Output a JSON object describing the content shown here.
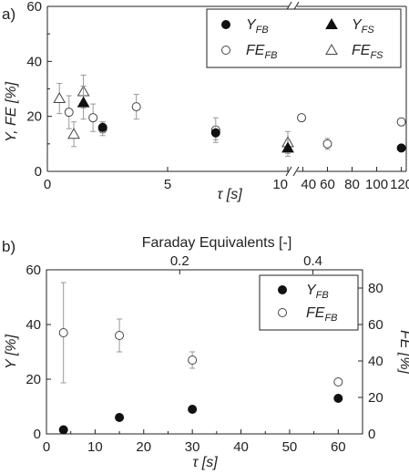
{
  "chart_data": [
    {
      "panel_label": "a)",
      "type": "scatter",
      "ylabel": "Y, FE [%]",
      "xlabel": "τ [s]",
      "ylim": [
        0,
        60
      ],
      "y_ticks": [
        0,
        20,
        40,
        60
      ],
      "x_segments": [
        {
          "xlim": [
            0,
            10
          ],
          "ticks": [
            0,
            5,
            10
          ]
        },
        {
          "xlim": [
            36,
            124
          ],
          "ticks": [
            40,
            60,
            80,
            100,
            120
          ]
        }
      ],
      "axis_break": true,
      "legend": {
        "placement": "top-right",
        "entries": [
          {
            "label": "Y",
            "sub": "FB",
            "marker": "filled-circle"
          },
          {
            "label": "Y",
            "sub": "FS",
            "marker": "filled-triangle"
          },
          {
            "label": "FE",
            "sub": "FB",
            "marker": "open-circle"
          },
          {
            "label": "FE",
            "sub": "FS",
            "marker": "open-triangle"
          }
        ]
      },
      "series": [
        {
          "key": "Y_FB",
          "marker": "filled-circle",
          "points": [
            {
              "x": 2.3,
              "y": 16,
              "err": 2
            },
            {
              "x": 7,
              "y": 14,
              "err": 2.5
            },
            {
              "x": 120,
              "y": 8.5,
              "err": 0
            }
          ]
        },
        {
          "key": "Y_FS",
          "marker": "filled-triangle",
          "points": [
            {
              "x": 1.5,
              "y": 25,
              "err": 6
            },
            {
              "x": 10,
              "y": 8.5,
              "err": 3
            }
          ]
        },
        {
          "key": "FE_FB",
          "marker": "open-circle",
          "points": [
            {
              "x": 0.9,
              "y": 21.5,
              "err": 6
            },
            {
              "x": 1.9,
              "y": 19.5,
              "err": 5
            },
            {
              "x": 2.3,
              "y": 15.5,
              "err": 2.5
            },
            {
              "x": 3.7,
              "y": 23.5,
              "err": 4.5
            },
            {
              "x": 7,
              "y": 15,
              "err": 4.5
            },
            {
              "x": 39,
              "y": 19.5,
              "err": 1
            },
            {
              "x": 60,
              "y": 10,
              "err": 2
            },
            {
              "x": 120,
              "y": 18,
              "err": 1
            }
          ]
        },
        {
          "key": "FE_FS",
          "marker": "open-triangle",
          "points": [
            {
              "x": 0.5,
              "y": 26.5,
              "err": 5.5
            },
            {
              "x": 1.1,
              "y": 13.5,
              "err": 4.5
            },
            {
              "x": 1.5,
              "y": 29,
              "err": 6
            },
            {
              "x": 10,
              "y": 10.5,
              "err": 4
            }
          ]
        }
      ]
    },
    {
      "panel_label": "b)",
      "type": "scatter",
      "top_xlabel": "Faraday Equivalents [-]",
      "top_ticks": [
        "0.2",
        "0.4"
      ],
      "top_tick_taus": [
        27.4,
        54.8
      ],
      "ylabel": "Y [%]",
      "y2label": "FE [%]",
      "xlabel": "τ [s]",
      "xlim": [
        0,
        65
      ],
      "x_ticks": [
        0,
        10,
        20,
        30,
        40,
        50,
        60
      ],
      "ylim": [
        0,
        60
      ],
      "y_ticks": [
        0,
        20,
        40,
        60
      ],
      "y2lim": [
        0,
        90
      ],
      "y2_ticks": [
        0,
        20,
        40,
        60,
        80
      ],
      "legend": {
        "placement": "top-right",
        "entries": [
          {
            "label": "Y",
            "sub": "FB",
            "marker": "filled-circle"
          },
          {
            "label": "FE",
            "sub": "FB",
            "marker": "open-circle"
          }
        ]
      },
      "series": [
        {
          "key": "Y_FB",
          "axis": "left",
          "marker": "filled-circle",
          "points": [
            {
              "x": 3.5,
              "y": 1.5
            },
            {
              "x": 15,
              "y": 6
            },
            {
              "x": 30,
              "y": 9
            },
            {
              "x": 60,
              "y": 13
            }
          ]
        },
        {
          "key": "FE_FB",
          "axis": "right",
          "marker": "open-circle",
          "points": [
            {
              "x": 3.5,
              "y": 55.5,
              "err": 27.5
            },
            {
              "x": 15,
              "y": 54,
              "err": 9
            },
            {
              "x": 30,
              "y": 40.5,
              "err": 4.5
            },
            {
              "x": 60,
              "y": 28.5,
              "err": 0
            }
          ]
        }
      ]
    }
  ]
}
